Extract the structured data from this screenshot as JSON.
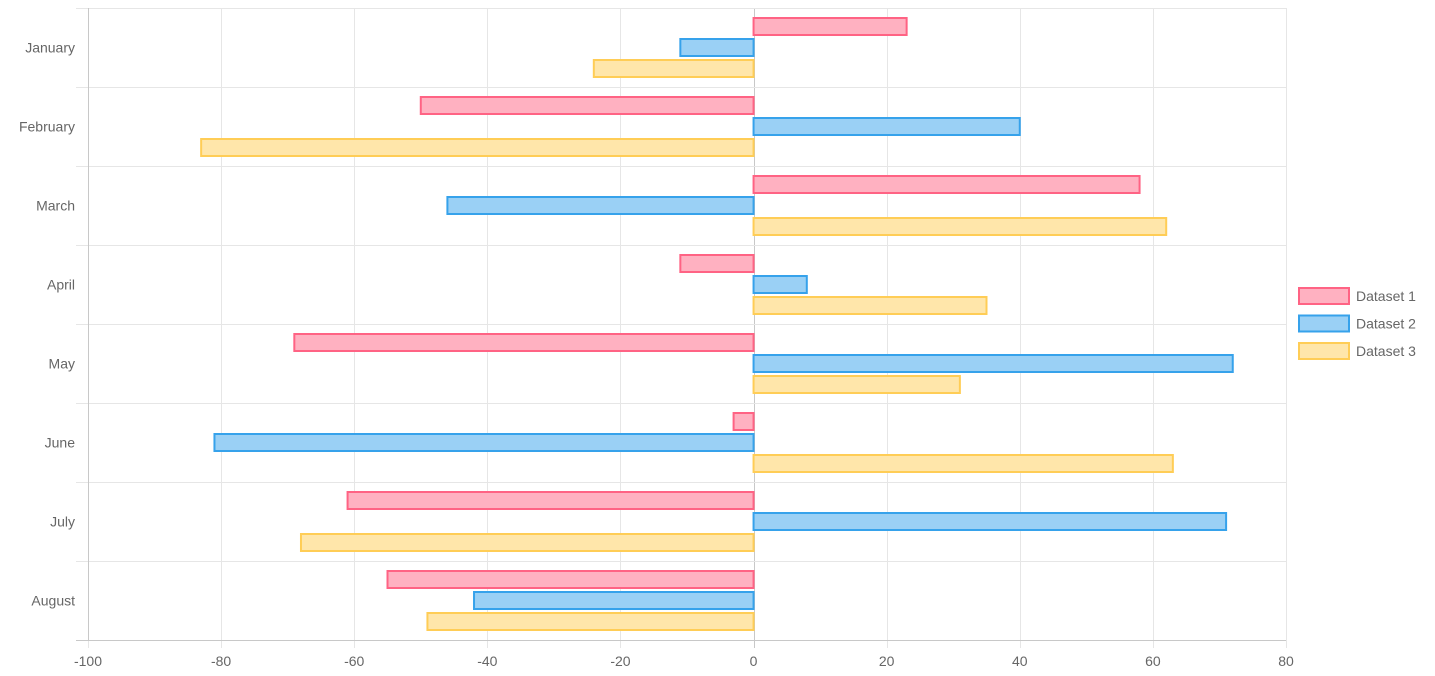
{
  "chart_data": {
    "type": "bar",
    "orientation": "horizontal",
    "categories": [
      "January",
      "February",
      "March",
      "April",
      "May",
      "June",
      "July",
      "August"
    ],
    "series": [
      {
        "name": "Dataset 1",
        "values": [
          23,
          -50,
          58,
          -11,
          -69,
          -3,
          -61,
          -55
        ],
        "fill": "#ffb1c1",
        "stroke": "#ff6384"
      },
      {
        "name": "Dataset 2",
        "values": [
          -11,
          40,
          -46,
          8,
          72,
          -81,
          71,
          -42
        ],
        "fill": "#9ad0f5",
        "stroke": "#36a2eb"
      },
      {
        "name": "Dataset 3",
        "values": [
          -24,
          -83,
          62,
          35,
          31,
          63,
          -68,
          -49
        ],
        "fill": "#ffe6aa",
        "stroke": "#ffcd56"
      }
    ],
    "xlim": [
      -100,
      80
    ],
    "xticks": [
      -100,
      -80,
      -60,
      -40,
      -20,
      0,
      20,
      40,
      60,
      80
    ],
    "title": "",
    "xlabel": "",
    "ylabel": "",
    "grid": true,
    "legend_position": "right"
  }
}
